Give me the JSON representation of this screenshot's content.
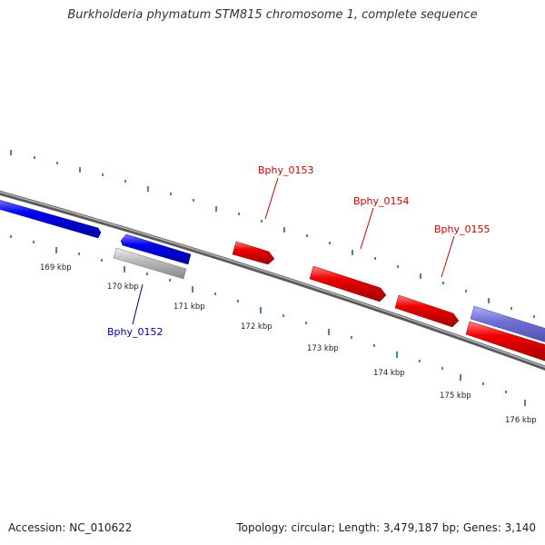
{
  "title": "Burkholderia phymatum STM815 chromosome 1, complete sequence",
  "footer": {
    "accession": "Accession: NC_010622",
    "summary": "Topology: circular; Length: 3,479,187 bp; Genes: 3,140"
  },
  "colors": {
    "backbone": "#808080",
    "tick": "#1e7d1e",
    "gene_forward": "#ee0000",
    "gene_reverse": "#0000ee",
    "gene_other": "#bbbbbb",
    "gene_purple": "#7070d8",
    "label_forward": "#cc0000",
    "label_reverse": "#000099"
  },
  "ruler": {
    "unit": "kbp",
    "ticks": [
      {
        "label": "169 kbp",
        "kbp": 169
      },
      {
        "label": "170 kbp",
        "kbp": 170
      },
      {
        "label": "171 kbp",
        "kbp": 171
      },
      {
        "label": "172 kbp",
        "kbp": 172
      },
      {
        "label": "173 kbp",
        "kbp": 173
      },
      {
        "label": "174 kbp",
        "kbp": 174
      },
      {
        "label": "175 kbp",
        "kbp": 175
      },
      {
        "label": "176 kbp",
        "kbp": 176
      }
    ]
  },
  "genes": [
    {
      "name": "Bphy_0152",
      "label": "Bphy_0152",
      "strand": "reverse"
    },
    {
      "name": "Bphy_0153",
      "label": "Bphy_0153",
      "strand": "forward"
    },
    {
      "name": "Bphy_0154",
      "label": "Bphy_0154",
      "strand": "forward"
    },
    {
      "name": "Bphy_0155",
      "label": "Bphy_0155",
      "strand": "forward"
    }
  ]
}
